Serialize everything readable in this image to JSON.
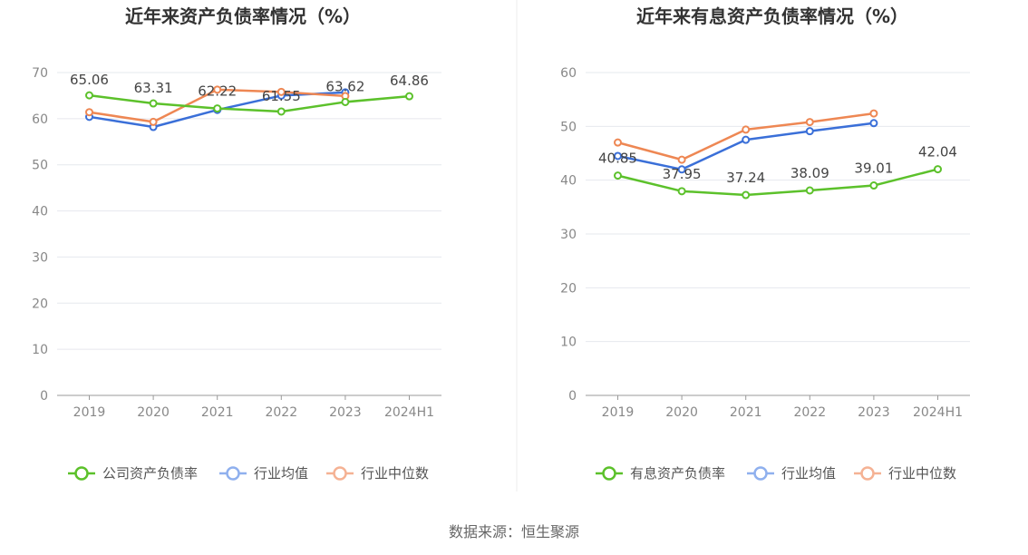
{
  "source": "数据来源：恒生聚源",
  "colors": {
    "company": "#5cc12b",
    "industry_avg": "#3a6fd8",
    "industry_median": "#ee8753",
    "grid": "#e6e8ee",
    "axis": "#999999"
  },
  "chart_data": [
    {
      "type": "line",
      "title": "近年来资产负债率情况（%）",
      "categories": [
        "2019",
        "2020",
        "2021",
        "2022",
        "2023",
        "2024H1"
      ],
      "ylim": [
        0,
        70
      ],
      "yticks": [
        0,
        10,
        20,
        30,
        40,
        50,
        60,
        70
      ],
      "grid": true,
      "legend_position": "bottom",
      "series": [
        {
          "name": "公司资产负债率",
          "color": "#5cc12b",
          "labeled": true,
          "values": [
            65.06,
            63.31,
            62.22,
            61.55,
            63.62,
            64.86
          ],
          "labels": [
            "65.06",
            "63.31",
            "62.22",
            "61.55",
            "63.62",
            "64.86"
          ]
        },
        {
          "name": "行业均值",
          "color": "#3a6fd8",
          "labeled": false,
          "values": [
            60.4,
            58.2,
            61.9,
            65.0,
            65.7,
            null
          ]
        },
        {
          "name": "行业中位数",
          "color": "#ee8753",
          "labeled": false,
          "values": [
            61.4,
            59.3,
            66.3,
            65.8,
            64.9,
            null
          ]
        }
      ]
    },
    {
      "type": "line",
      "title": "近年来有息资产负债率情况（%）",
      "categories": [
        "2019",
        "2020",
        "2021",
        "2022",
        "2023",
        "2024H1"
      ],
      "ylim": [
        0,
        60
      ],
      "yticks": [
        0,
        10,
        20,
        30,
        40,
        50,
        60
      ],
      "grid": true,
      "legend_position": "bottom",
      "series": [
        {
          "name": "有息资产负债率",
          "color": "#5cc12b",
          "labeled": true,
          "values": [
            40.85,
            37.95,
            37.24,
            38.09,
            39.01,
            42.04
          ],
          "labels": [
            "40.85",
            "37.95",
            "37.24",
            "38.09",
            "39.01",
            "42.04"
          ]
        },
        {
          "name": "行业均值",
          "color": "#3a6fd8",
          "labeled": false,
          "values": [
            44.5,
            42.0,
            47.5,
            49.1,
            50.6,
            null
          ]
        },
        {
          "name": "行业中位数",
          "color": "#ee8753",
          "labeled": false,
          "values": [
            47.0,
            43.8,
            49.4,
            50.8,
            52.4,
            null
          ]
        }
      ]
    }
  ]
}
